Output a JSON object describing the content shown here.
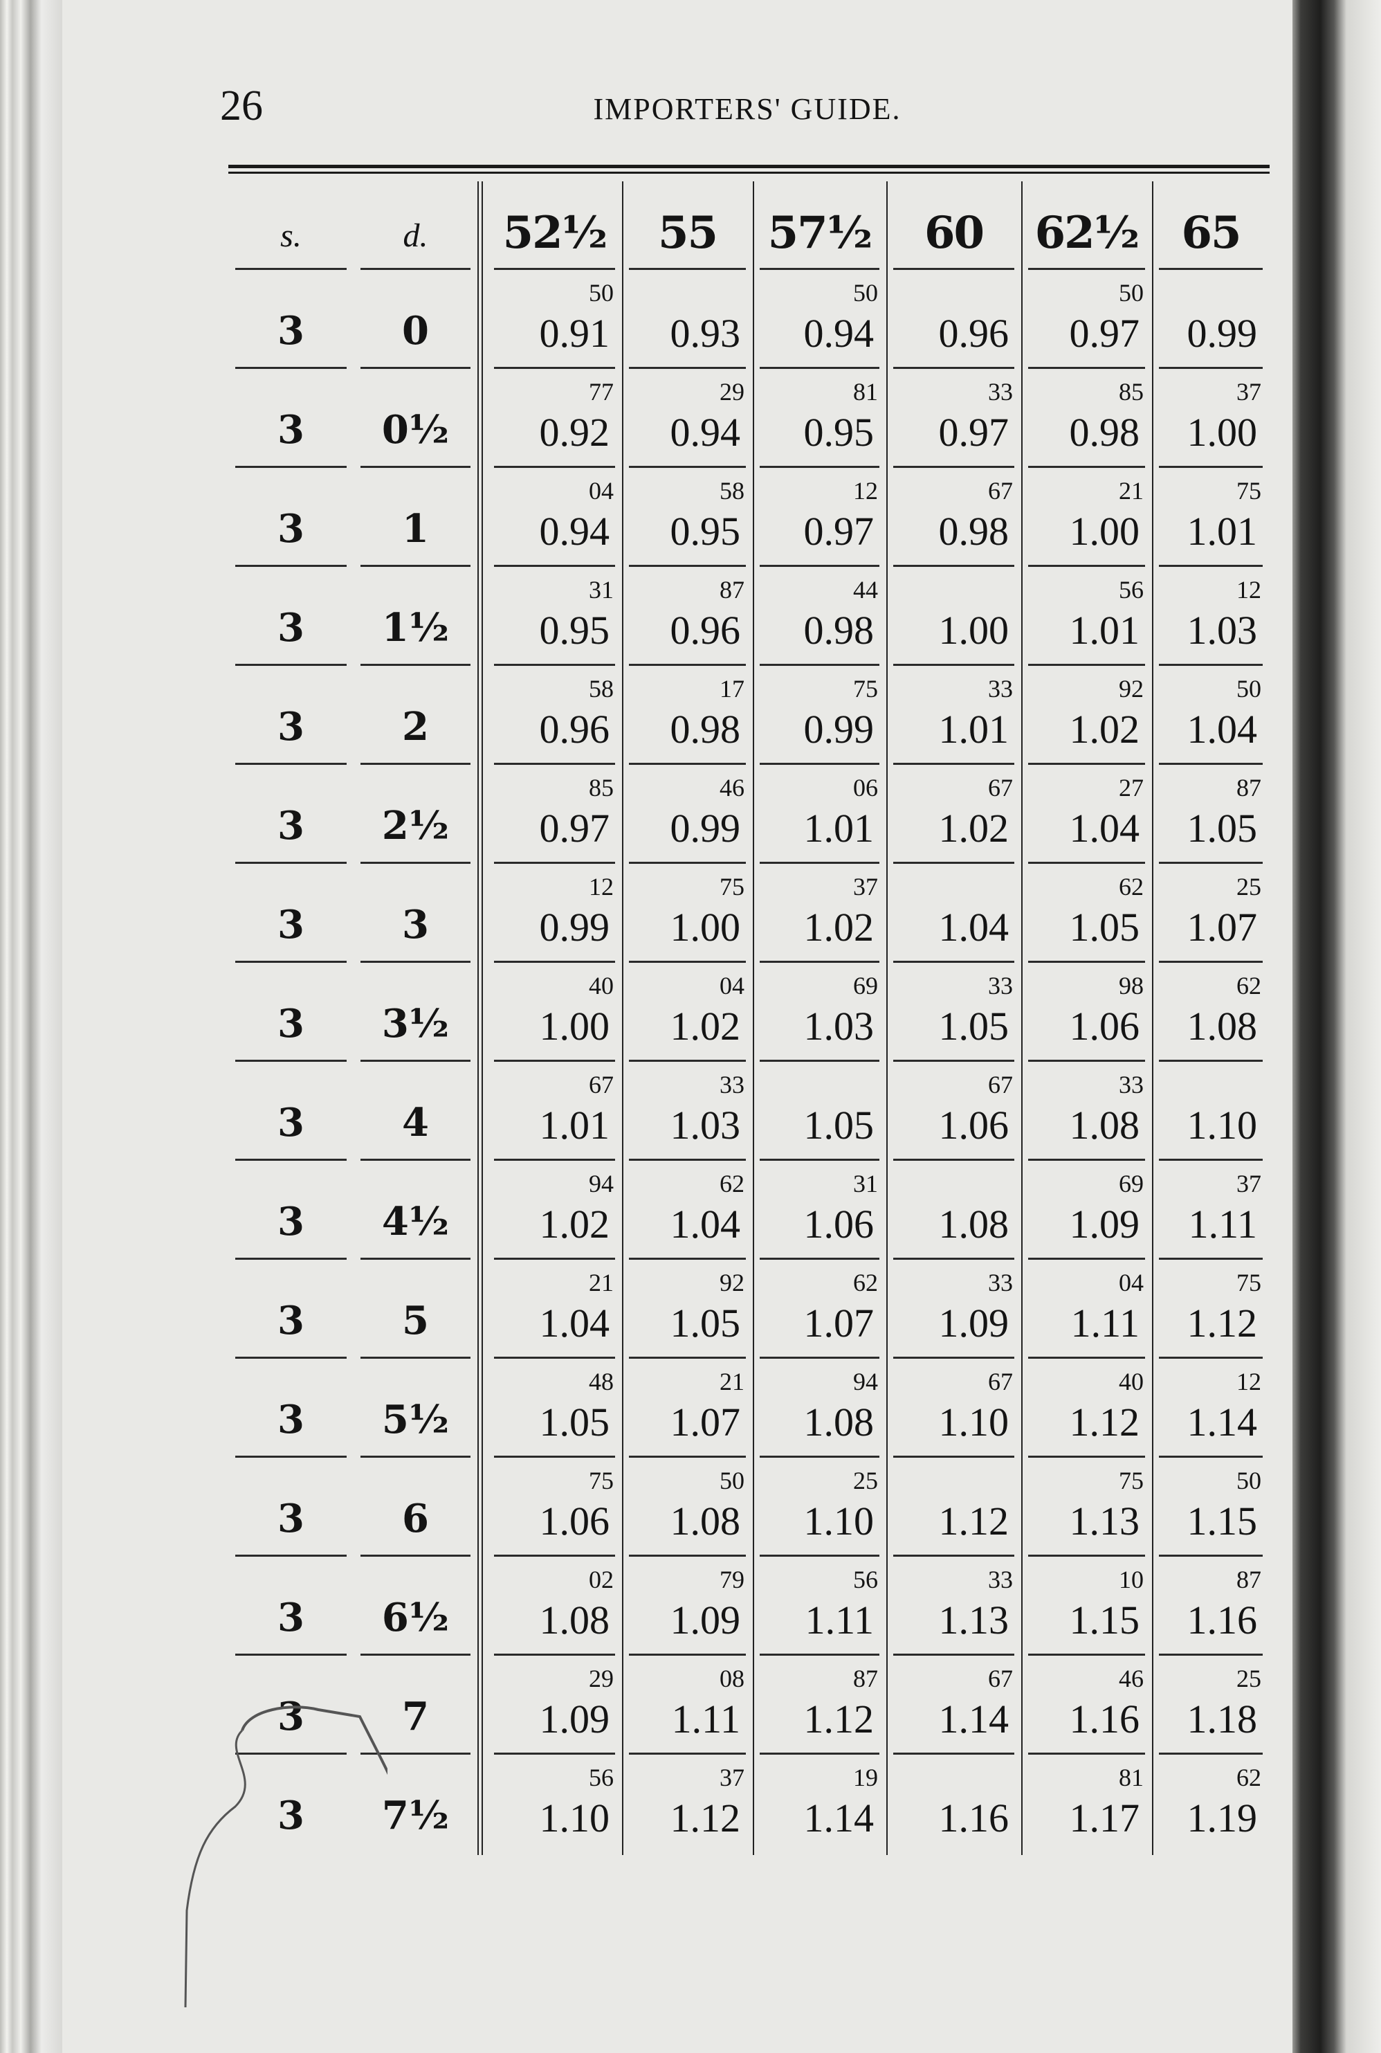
{
  "page": {
    "number": "26",
    "running_title": "IMPORTERS' GUIDE."
  },
  "table": {
    "header": {
      "s": "s.",
      "d": "d.",
      "rates": [
        "52½",
        "55",
        "57½",
        "60",
        "62½",
        "65"
      ]
    },
    "rows": [
      {
        "s": "3",
        "d": "0",
        "cells": [
          [
            "0.91",
            "50"
          ],
          [
            "0.93",
            ""
          ],
          [
            "0.94",
            "50"
          ],
          [
            "0.96",
            ""
          ],
          [
            "0.97",
            "50"
          ],
          [
            "0.99",
            ""
          ]
        ]
      },
      {
        "s": "3",
        "d": "0½",
        "cells": [
          [
            "0.92",
            "77"
          ],
          [
            "0.94",
            "29"
          ],
          [
            "0.95",
            "81"
          ],
          [
            "0.97",
            "33"
          ],
          [
            "0.98",
            "85"
          ],
          [
            "1.00",
            "37"
          ]
        ]
      },
      {
        "s": "3",
        "d": "1",
        "cells": [
          [
            "0.94",
            "04"
          ],
          [
            "0.95",
            "58"
          ],
          [
            "0.97",
            "12"
          ],
          [
            "0.98",
            "67"
          ],
          [
            "1.00",
            "21"
          ],
          [
            "1.01",
            "75"
          ]
        ]
      },
      {
        "s": "3",
        "d": "1½",
        "cells": [
          [
            "0.95",
            "31"
          ],
          [
            "0.96",
            "87"
          ],
          [
            "0.98",
            "44"
          ],
          [
            "1.00",
            ""
          ],
          [
            "1.01",
            "56"
          ],
          [
            "1.03",
            "12"
          ]
        ]
      },
      {
        "s": "3",
        "d": "2",
        "cells": [
          [
            "0.96",
            "58"
          ],
          [
            "0.98",
            "17"
          ],
          [
            "0.99",
            "75"
          ],
          [
            "1.01",
            "33"
          ],
          [
            "1.02",
            "92"
          ],
          [
            "1.04",
            "50"
          ]
        ]
      },
      {
        "s": "3",
        "d": "2½",
        "cells": [
          [
            "0.97",
            "85"
          ],
          [
            "0.99",
            "46"
          ],
          [
            "1.01",
            "06"
          ],
          [
            "1.02",
            "67"
          ],
          [
            "1.04",
            "27"
          ],
          [
            "1.05",
            "87"
          ]
        ]
      },
      {
        "s": "3",
        "d": "3",
        "cells": [
          [
            "0.99",
            "12"
          ],
          [
            "1.00",
            "75"
          ],
          [
            "1.02",
            "37"
          ],
          [
            "1.04",
            ""
          ],
          [
            "1.05",
            "62"
          ],
          [
            "1.07",
            "25"
          ]
        ]
      },
      {
        "s": "3",
        "d": "3½",
        "cells": [
          [
            "1.00",
            "40"
          ],
          [
            "1.02",
            "04"
          ],
          [
            "1.03",
            "69"
          ],
          [
            "1.05",
            "33"
          ],
          [
            "1.06",
            "98"
          ],
          [
            "1.08",
            "62"
          ]
        ]
      },
      {
        "s": "3",
        "d": "4",
        "cells": [
          [
            "1.01",
            "67"
          ],
          [
            "1.03",
            "33"
          ],
          [
            "1.05",
            ""
          ],
          [
            "1.06",
            "67"
          ],
          [
            "1.08",
            "33"
          ],
          [
            "1.10",
            ""
          ]
        ]
      },
      {
        "s": "3",
        "d": "4½",
        "cells": [
          [
            "1.02",
            "94"
          ],
          [
            "1.04",
            "62"
          ],
          [
            "1.06",
            "31"
          ],
          [
            "1.08",
            ""
          ],
          [
            "1.09",
            "69"
          ],
          [
            "1.11",
            "37"
          ]
        ]
      },
      {
        "s": "3",
        "d": "5",
        "cells": [
          [
            "1.04",
            "21"
          ],
          [
            "1.05",
            "92"
          ],
          [
            "1.07",
            "62"
          ],
          [
            "1.09",
            "33"
          ],
          [
            "1.11",
            "04"
          ],
          [
            "1.12",
            "75"
          ]
        ]
      },
      {
        "s": "3",
        "d": "5½",
        "cells": [
          [
            "1.05",
            "48"
          ],
          [
            "1.07",
            "21"
          ],
          [
            "1.08",
            "94"
          ],
          [
            "1.10",
            "67"
          ],
          [
            "1.12",
            "40"
          ],
          [
            "1.14",
            "12"
          ]
        ]
      },
      {
        "s": "3",
        "d": "6",
        "cells": [
          [
            "1.06",
            "75"
          ],
          [
            "1.08",
            "50"
          ],
          [
            "1.10",
            "25"
          ],
          [
            "1.12",
            ""
          ],
          [
            "1.13",
            "75"
          ],
          [
            "1.15",
            "50"
          ]
        ]
      },
      {
        "s": "3",
        "d": "6½",
        "cells": [
          [
            "1.08",
            "02"
          ],
          [
            "1.09",
            "79"
          ],
          [
            "1.11",
            "56"
          ],
          [
            "1.13",
            "33"
          ],
          [
            "1.15",
            "10"
          ],
          [
            "1.16",
            "87"
          ]
        ]
      },
      {
        "s": "3",
        "d": "7",
        "cells": [
          [
            "1.09",
            "29"
          ],
          [
            "1.11",
            "08"
          ],
          [
            "1.12",
            "87"
          ],
          [
            "1.14",
            "67"
          ],
          [
            "1.16",
            "46"
          ],
          [
            "1.18",
            "25"
          ]
        ]
      },
      {
        "s": "3",
        "d": "7½",
        "cells": [
          [
            "1.10",
            "56"
          ],
          [
            "1.12",
            "37"
          ],
          [
            "1.14",
            "19"
          ],
          [
            "1.16",
            ""
          ],
          [
            "1.17",
            "81"
          ],
          [
            "1.19",
            "62"
          ]
        ]
      }
    ]
  },
  "colors": {
    "paper": "#e9e9e6",
    "ink": "#141414"
  }
}
